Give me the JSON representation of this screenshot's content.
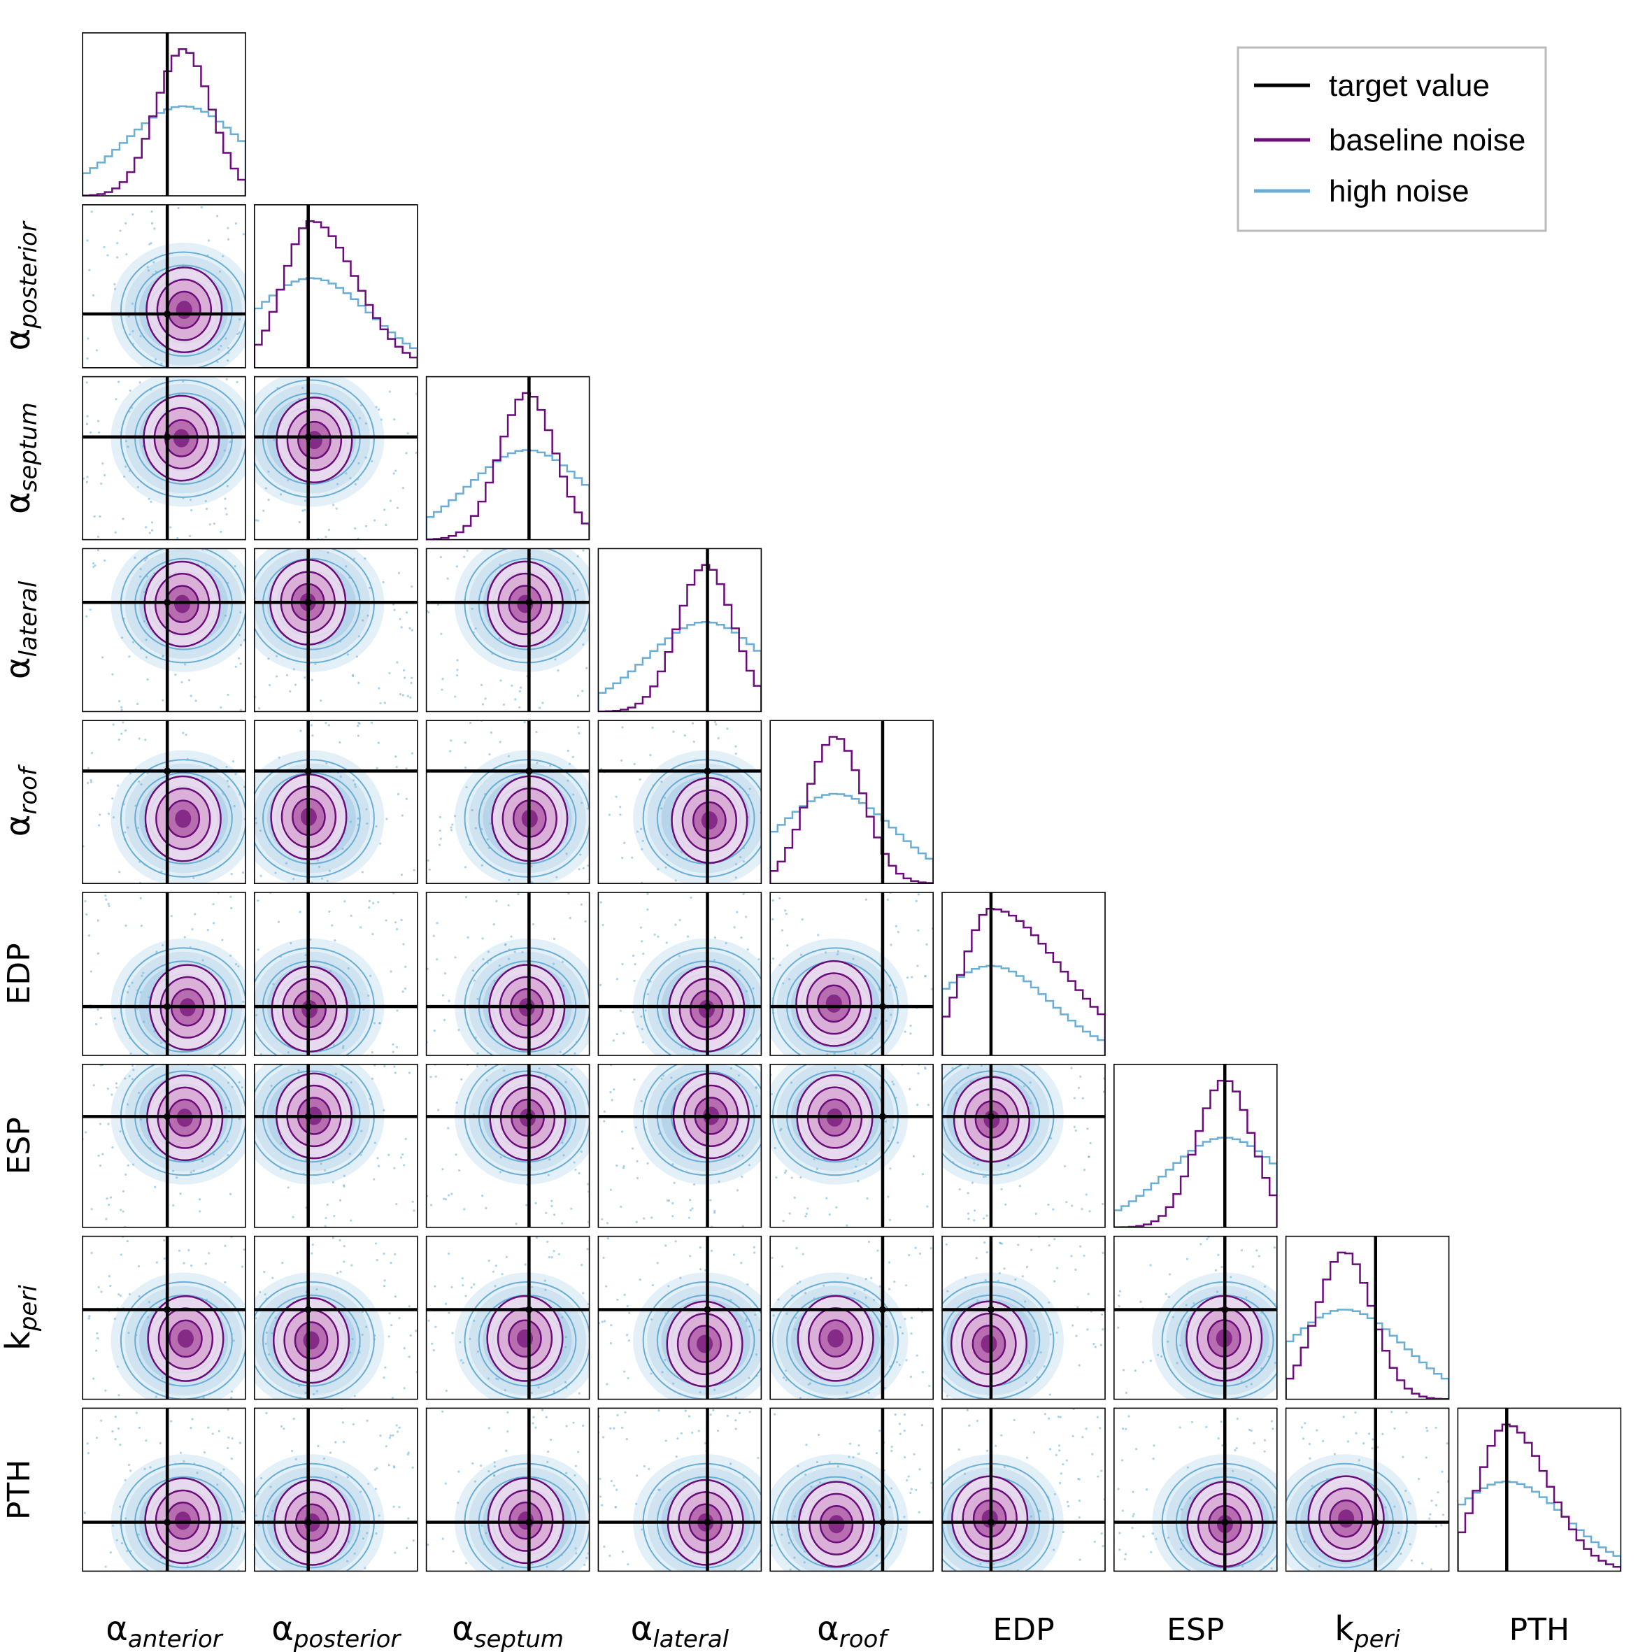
{
  "chart_data": {
    "type": "corner",
    "parameters": [
      {
        "id": "alpha_anterior",
        "symbol": "α",
        "sub": "anterior",
        "target": 0.52
      },
      {
        "id": "alpha_posterior",
        "symbol": "α",
        "sub": "posterior",
        "target": 0.33
      },
      {
        "id": "alpha_septum",
        "symbol": "α",
        "sub": "septum",
        "target": 0.63
      },
      {
        "id": "alpha_lateral",
        "symbol": "α",
        "sub": "lateral",
        "target": 0.67
      },
      {
        "id": "alpha_roof",
        "symbol": "α",
        "sub": "roof",
        "target": 0.69
      },
      {
        "id": "EDP",
        "symbol": "EDP",
        "sub": "",
        "target": 0.3
      },
      {
        "id": "ESP",
        "symbol": "ESP",
        "sub": "",
        "target": 0.68
      },
      {
        "id": "k_peri",
        "symbol": "k",
        "sub": "peri",
        "target": 0.55
      },
      {
        "id": "PTH",
        "symbol": "PTH",
        "sub": "",
        "target": 0.3
      }
    ],
    "series": [
      {
        "name": "baseline noise",
        "color": "#6a0d7a",
        "width_scale": 0.55
      },
      {
        "name": "high noise",
        "color": "#6aaed6",
        "width_scale": 1.0
      }
    ],
    "target_line": {
      "name": "target value",
      "color": "#000000"
    },
    "marginal_centers": [
      0.62,
      0.35,
      0.62,
      0.66,
      0.4,
      0.3,
      0.68,
      0.36,
      0.3
    ],
    "marginal_skew": [
      0,
      0.6,
      0,
      0,
      0,
      1.5,
      0,
      0,
      0.5
    ],
    "legend": {
      "position": "top-right",
      "items": [
        "target value",
        "baseline noise",
        "high noise"
      ]
    }
  },
  "colors": {
    "baseline": "#6a0d7a",
    "high": "#6aaed6",
    "target": "#000000",
    "frame": "#000000"
  }
}
